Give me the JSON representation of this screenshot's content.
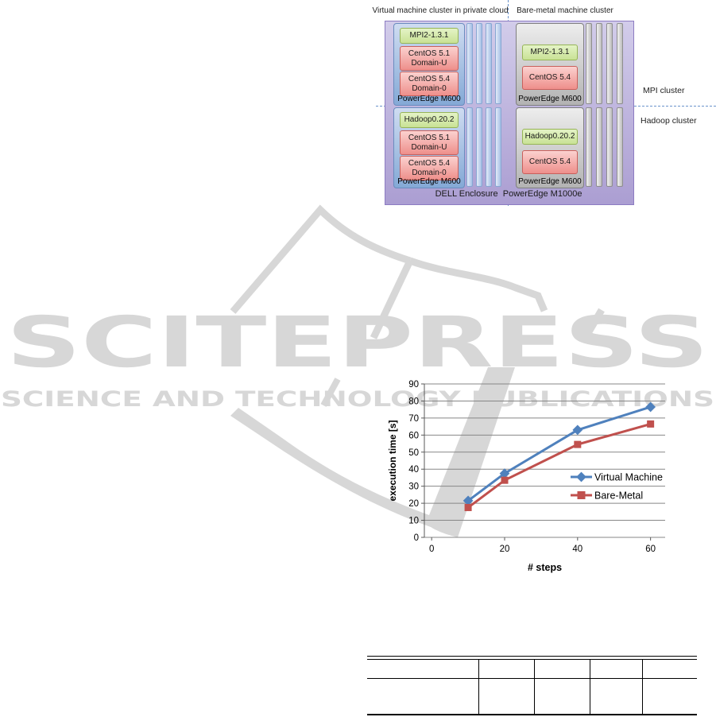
{
  "watermark": {
    "logo_text": "SCITEPRESS",
    "subtitle_text": "SCIENCE AND TECHNOLOGY PUBLICATIONS",
    "color": "#d7d7d7"
  },
  "architecture_diagram": {
    "vm_cluster_label": "Virtual machine cluster in private cloud",
    "bm_cluster_label": "Bare-metal machine cluster",
    "mpi_cluster_label": "MPI cluster",
    "hadoop_cluster_label": "Hadoop cluster",
    "enclosure_label": "DELL Enclosure  PowerEdge M1000e",
    "servers": [
      {
        "hardware": "PowerEdge M600",
        "stack": [
          {
            "label": "MPI2-1.3.1"
          },
          {
            "label": "CentOS 5.1\nDomain-U"
          },
          {
            "label": "CentOS 5.4\nDomain-0"
          }
        ]
      },
      {
        "hardware": "PowerEdge M600",
        "stack": [
          {
            "label": "MPI2-1.3.1"
          },
          {
            "label": "CentOS 5.4"
          }
        ]
      },
      {
        "hardware": "PowerEdge M600",
        "stack": [
          {
            "label": "Hadoop0.20.2"
          },
          {
            "label": "CentOS 5.1\nDomain-U"
          },
          {
            "label": "CentOS 5.4\nDomain-0"
          }
        ]
      },
      {
        "hardware": "PowerEdge M600",
        "stack": [
          {
            "label": "Hadoop0.20.2"
          },
          {
            "label": "CentOS 5.4"
          }
        ]
      }
    ],
    "colors": {
      "enclosure": "#b4a8d5",
      "vm_server": "#9ab8e0",
      "bm_server": "#c6c6c6",
      "software_chip": "#d6eca6",
      "os_chip": "#f4a7a4",
      "divider_dashed": "#6a93cc"
    }
  },
  "chart_data": {
    "type": "line",
    "x": [
      10,
      20,
      40,
      60
    ],
    "series": [
      {
        "name": "Virtual Machine",
        "color": "#4F81BD",
        "marker": "diamond",
        "values": [
          21.5,
          37.5,
          63,
          76.5
        ]
      },
      {
        "name": "Bare-Metal",
        "color": "#C0504D",
        "marker": "square",
        "values": [
          17.5,
          33.5,
          54.5,
          66.5
        ]
      }
    ],
    "xlabel": "# steps",
    "ylabel": "execution time [s]",
    "xticks": [
      0,
      20,
      40,
      60
    ],
    "xlim": [
      -2,
      64
    ],
    "ylim": [
      0,
      90
    ],
    "ytick_step": 10,
    "grid": true,
    "legend_position": "inside-right"
  }
}
